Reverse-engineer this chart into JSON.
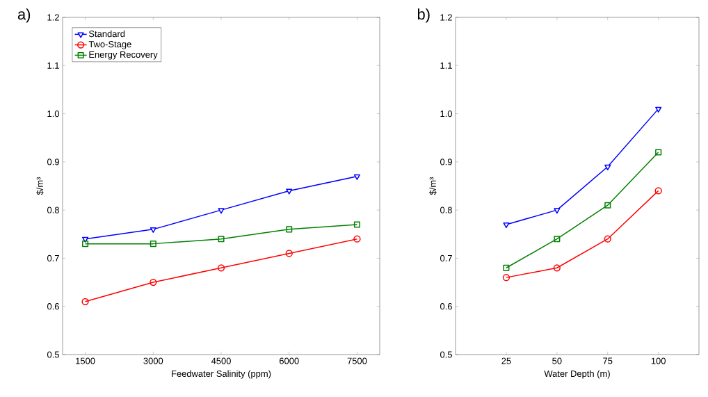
{
  "chart_data": [
    {
      "type": "line",
      "xlabel": "Feedwater Salinity (ppm)",
      "ylabel": "$/m³",
      "annotations": [
        "a)"
      ],
      "x": [
        1500,
        3000,
        4500,
        6000,
        7500
      ],
      "xlim": [
        1000,
        8000
      ],
      "xticks": [
        1500,
        3000,
        4500,
        6000,
        7500
      ],
      "ylim": [
        0.5,
        1.2
      ],
      "yticks": [
        0.5,
        0.6,
        0.7,
        0.8,
        0.9,
        {
          "value": 1.0,
          "label": "1.0"
        },
        1.1,
        1.2
      ],
      "legend": "top left",
      "line_style": "solid",
      "series": [
        {
          "name": "Standard",
          "color": "#0000ff",
          "marker": "triangle",
          "values": [
            0.74,
            0.76,
            0.8,
            0.84,
            0.87
          ]
        },
        {
          "name": "Two-Stage",
          "color": "#ff0000",
          "marker": "circle",
          "values": [
            0.61,
            0.65,
            0.68,
            0.71,
            0.74
          ]
        },
        {
          "name": "Energy Recovery",
          "color": "#008000",
          "marker": "square",
          "values": [
            0.73,
            0.73,
            0.74,
            0.76,
            0.77
          ]
        }
      ]
    },
    {
      "type": "line",
      "xlabel": "Water Depth (m)",
      "ylabel": "$/m³",
      "annotations": [
        "b)"
      ],
      "x": [
        25,
        50,
        75,
        100
      ],
      "xlim": [
        0,
        120
      ],
      "xticks": [
        25,
        50,
        75,
        100
      ],
      "ylim": [
        0.5,
        1.2
      ],
      "yticks": [
        0.5,
        0.6,
        0.7,
        0.8,
        0.9,
        {
          "value": 1.0,
          "label": "1.0"
        },
        1.1,
        1.2
      ],
      "line_style": "solid",
      "series": [
        {
          "color": "#0000ff",
          "marker": "triangle",
          "values": [
            0.77,
            0.8,
            0.89,
            1.01
          ]
        },
        {
          "color": "#ff0000",
          "marker": "circle",
          "values": [
            0.66,
            0.68,
            0.74,
            0.84
          ]
        },
        {
          "color": "#008000",
          "marker": "square",
          "values": [
            0.68,
            0.74,
            0.81,
            0.92
          ]
        }
      ]
    }
  ]
}
